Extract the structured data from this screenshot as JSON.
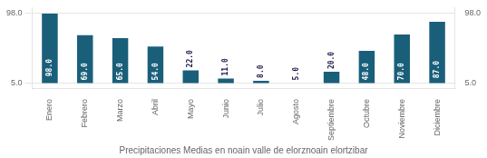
{
  "chart_data": {
    "type": "bar",
    "title": "Precipitaciones Medias en noain valle de elorznoain elortzibar",
    "categories": [
      "Enero",
      "Febrero",
      "Marzo",
      "Abril",
      "Mayo",
      "Junio",
      "Julio",
      "Agosto",
      "Septiembre",
      "Octubre",
      "Noviembre",
      "Diciembre"
    ],
    "values": [
      98.0,
      69.0,
      65.0,
      54.0,
      22.0,
      11.0,
      8.0,
      5.0,
      20.0,
      48.0,
      70.0,
      87.0
    ],
    "value_labels": [
      "98.0",
      "69.0",
      "65.0",
      "54.0",
      "22.0",
      "11.0",
      "8.0",
      "5.0",
      "20.0",
      "48.0",
      "70.0",
      "87.0"
    ],
    "data_labels": true,
    "color": "#1a5f7a",
    "ylim": [
      -3,
      106
    ],
    "yticks": [
      {
        "value": 5,
        "label": "5.0"
      },
      {
        "value": 98,
        "label": "98.0"
      }
    ],
    "y2lim": [
      -3,
      106
    ],
    "y2ticks": [
      {
        "value": 5,
        "label": "5.0"
      },
      {
        "value": 98,
        "label": "98.0"
      }
    ],
    "grid": true
  }
}
